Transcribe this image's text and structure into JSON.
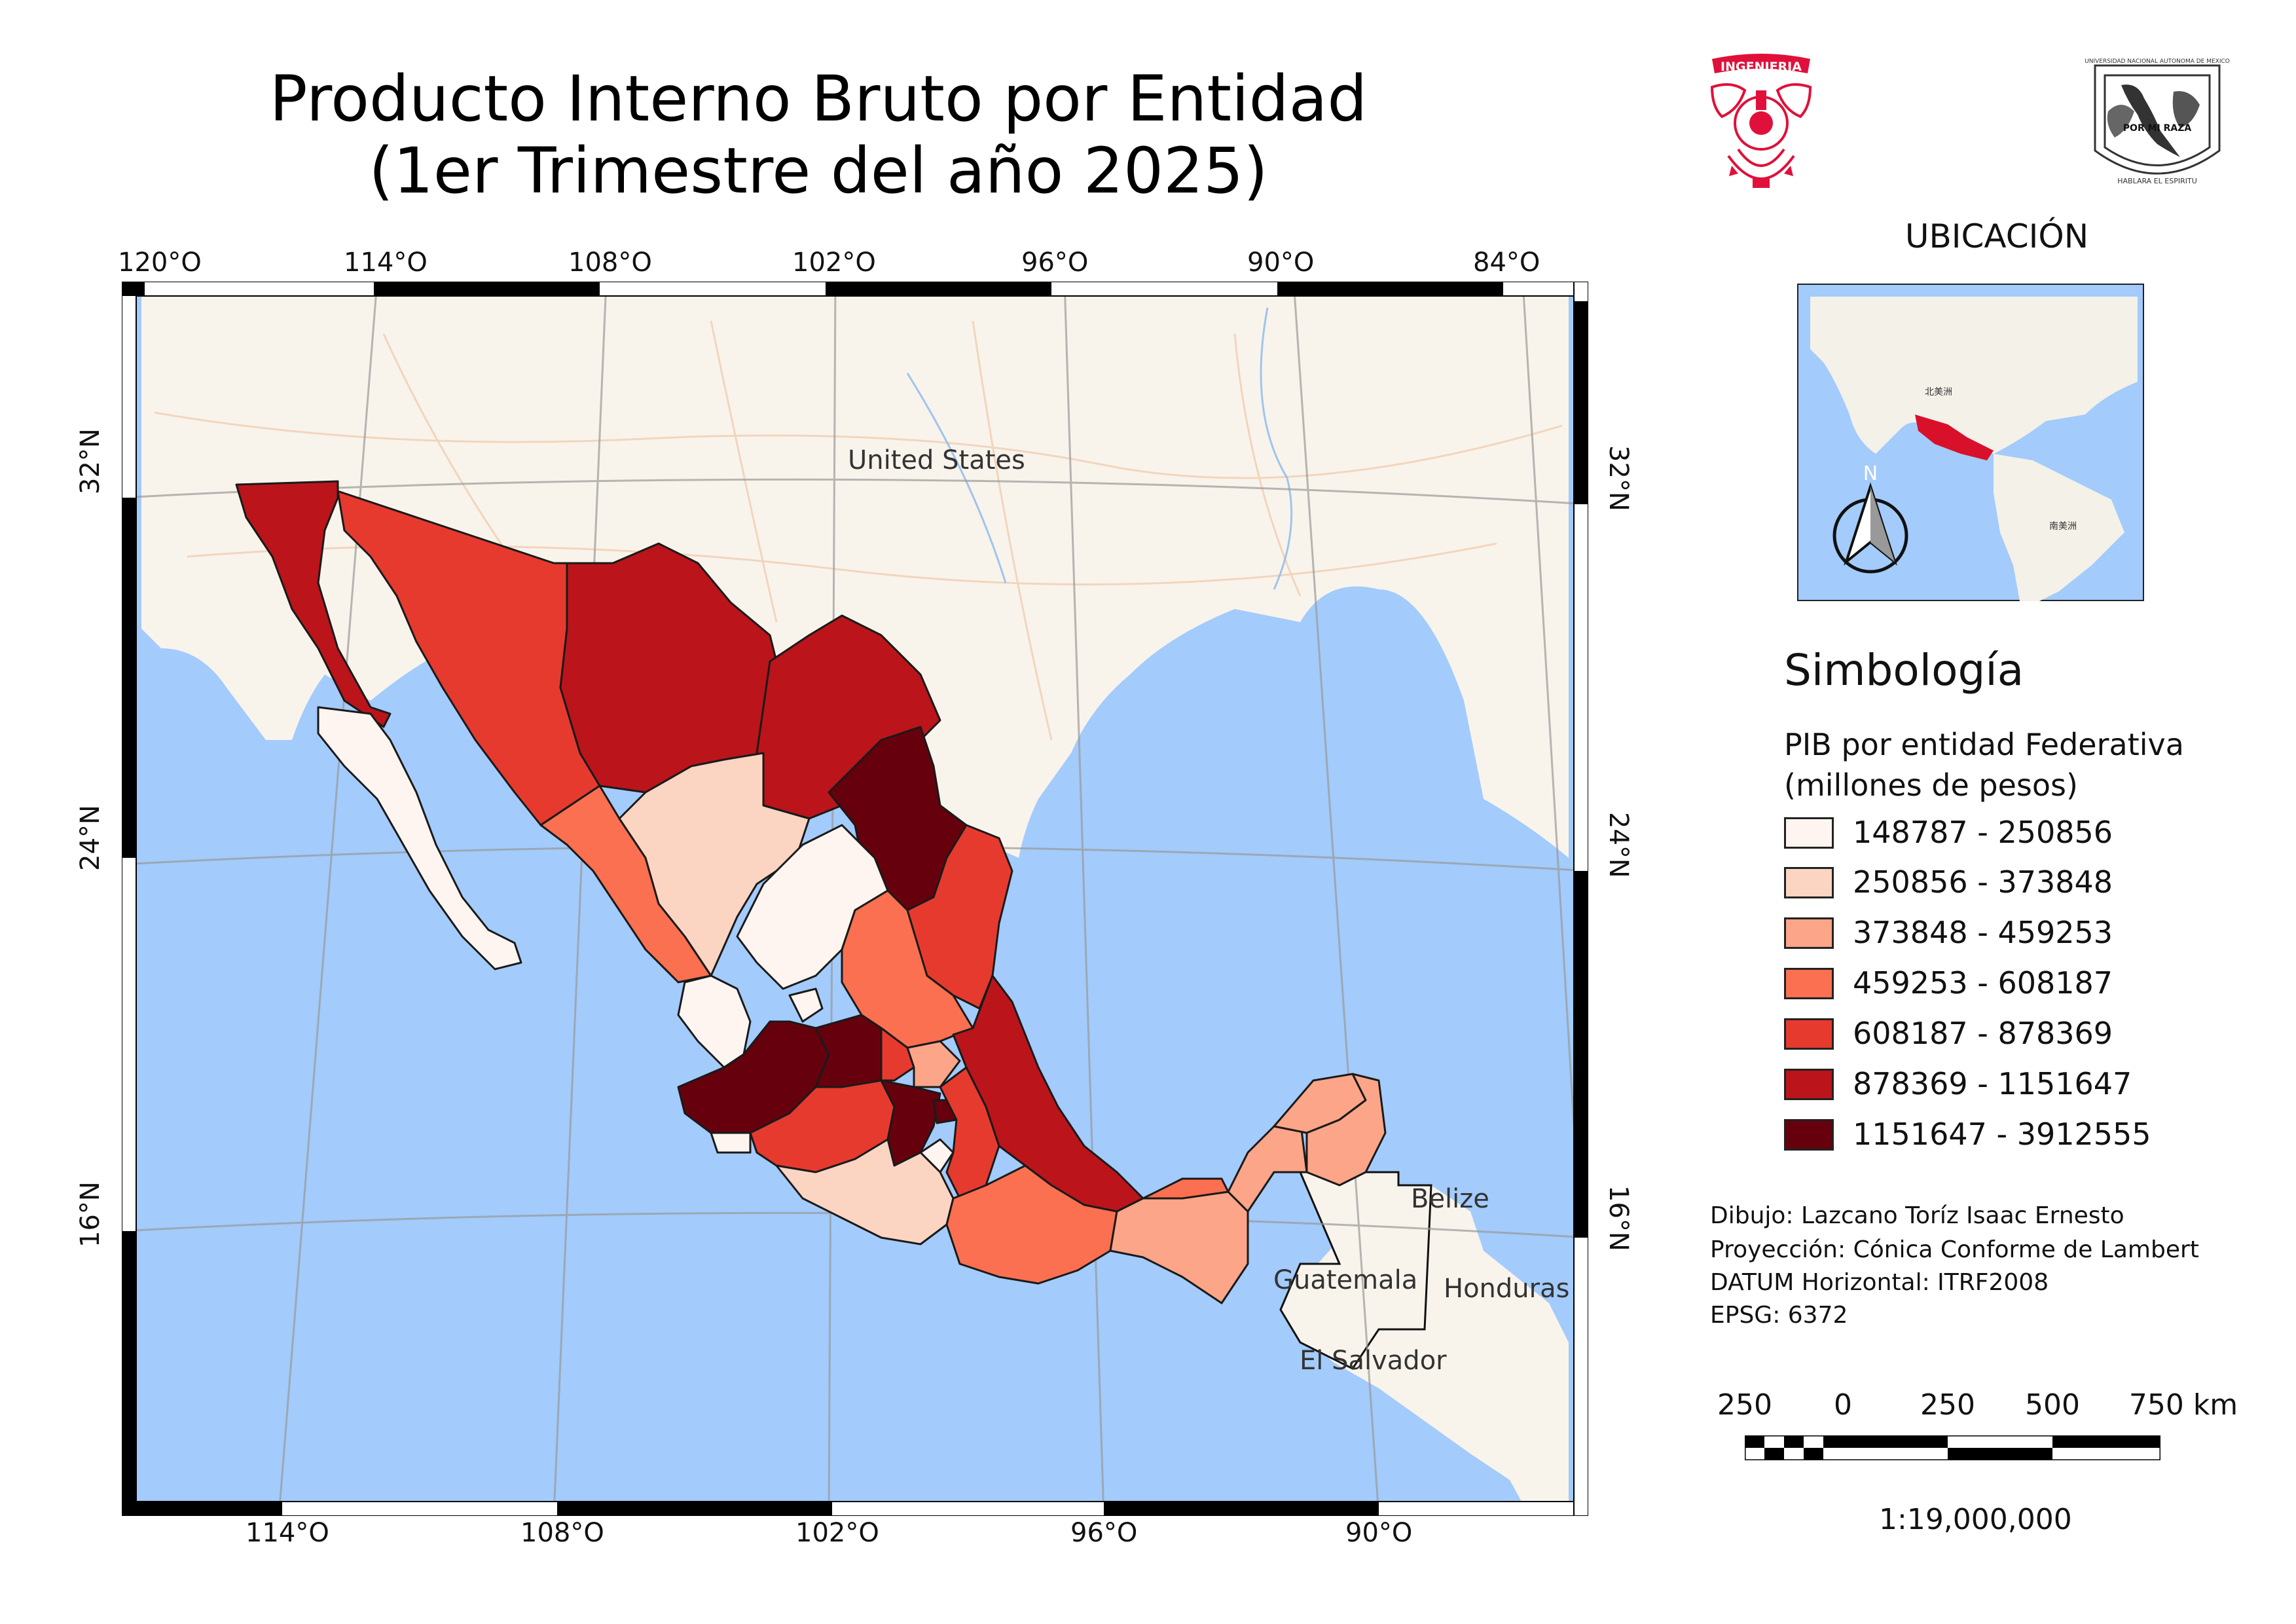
{
  "title": {
    "line1": "Producto Interno Bruto por Entidad",
    "line2": "(1er Trimestre del año 2025)"
  },
  "logos": {
    "left": {
      "name": "ingenieria-logo",
      "text": "INGENIERIA",
      "color": "#e0103a"
    },
    "right": {
      "name": "unam-seal-logo",
      "text": "UNIVERSIDAD NACIONAL AUTONOMA DE MEXICO · POR MI RAZA HABLARA EL ESPIRITU",
      "color": "#333333"
    }
  },
  "map": {
    "top_lon_labels": [
      "120°O",
      "114°O",
      "108°O",
      "102°O",
      "96°O",
      "90°O",
      "84°O"
    ],
    "bottom_lon_labels": [
      "114°O",
      "108°O",
      "102°O",
      "96°O",
      "90°O"
    ],
    "lat_labels": [
      "32°N",
      "24°N",
      "16°N"
    ],
    "country_labels": [
      "United States",
      "Belize",
      "Guatemala",
      "Honduras",
      "El Salvador"
    ],
    "colors": {
      "ocean": "#a3cbfc",
      "land": "#f8f4ec",
      "grid": "#999999"
    }
  },
  "inset": {
    "title": "UBICACIÓN",
    "north_label": "N",
    "continent_labels": [
      "北美洲",
      "南美洲"
    ],
    "colors": {
      "ocean": "#a3cbfc",
      "land": "#f4f1e8",
      "highlight": "#d9102a"
    }
  },
  "legend": {
    "title": "Simbología",
    "subtitle_line1": "PIB por entidad Federativa",
    "subtitle_line2": "(millones de pesos)",
    "classes": [
      {
        "label": "148787 - 250856",
        "color": "#fff5f0"
      },
      {
        "label": "250856 - 373848",
        "color": "#fcd5c2"
      },
      {
        "label": "373848 - 459253",
        "color": "#fca588"
      },
      {
        "label": "459253 - 608187",
        "color": "#fb7050"
      },
      {
        "label": "608187 - 878369",
        "color": "#e73a2f"
      },
      {
        "label": "878369 - 1151647",
        "color": "#bb141b"
      },
      {
        "label": "1151647 - 3912555",
        "color": "#67000d"
      }
    ]
  },
  "credits": [
    "Dibujo: Lazcano Toríz Isaac Ernesto",
    "Proyección: Cónica Conforme de Lambert",
    "DATUM Horizontal: ITRF2008",
    "EPSG: 6372"
  ],
  "scale_bar": {
    "labels": [
      "250",
      "0",
      "250",
      "500",
      "750 km"
    ],
    "ratio": "1:19,000,000"
  }
}
